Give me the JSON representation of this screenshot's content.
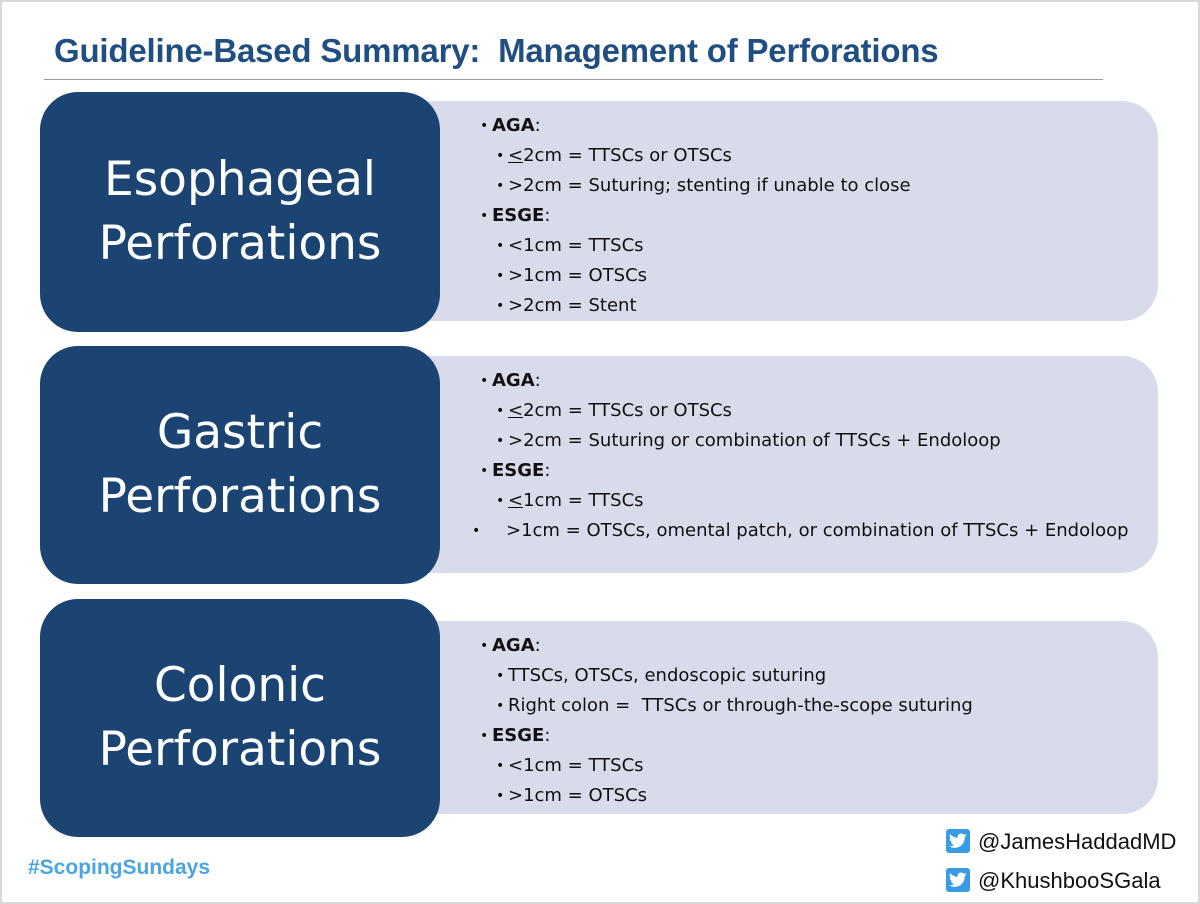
{
  "title": "Guideline-Based Summary:  Management of Perforations",
  "sections": [
    {
      "label_line1": "Esophageal",
      "label_line2": "Perforations",
      "aga_head": "AGA",
      "aga_items": [
        "<2cm = TTSCs or OTSCs",
        ">2cm = Suturing; stenting if unable to close"
      ],
      "esge_head": "ESGE",
      "esge_items": [
        "<1cm = TTSCs",
        ">1cm = OTSCs",
        ">2cm = Stent"
      ]
    },
    {
      "label_line1": "Gastric",
      "label_line2": "Perforations",
      "aga_head": "AGA",
      "aga_items": [
        "<2cm = TTSCs or OTSCs",
        ">2cm = Suturing or combination of TTSCs + Endoloop"
      ],
      "esge_head": "ESGE",
      "esge_items": [
        "<1cm = TTSCs",
        ">1cm = OTSCs, omental patch, or combination of TTSCs + Endoloop"
      ]
    },
    {
      "label_line1": "Colonic",
      "label_line2": "Perforations",
      "aga_head": "AGA",
      "aga_items": [
        "TTSCs, OTSCs, endoscopic suturing",
        "Right colon =  TTSCs or through-the-scope suturing"
      ],
      "esge_head": "ESGE",
      "esge_items": [
        "<1cm = TTSCs",
        ">1cm = OTSCs"
      ]
    }
  ],
  "footer": {
    "hashtag": "#ScopingSundays",
    "handle1": "@JamesHaddadMD",
    "handle2": "@KhushbooSGala",
    "icon": "twitter-icon",
    "colors": {
      "navy": "#1b4473",
      "panel": "#d7dbea",
      "title": "#1f4e80",
      "hashtag": "#4aa5e2"
    }
  }
}
